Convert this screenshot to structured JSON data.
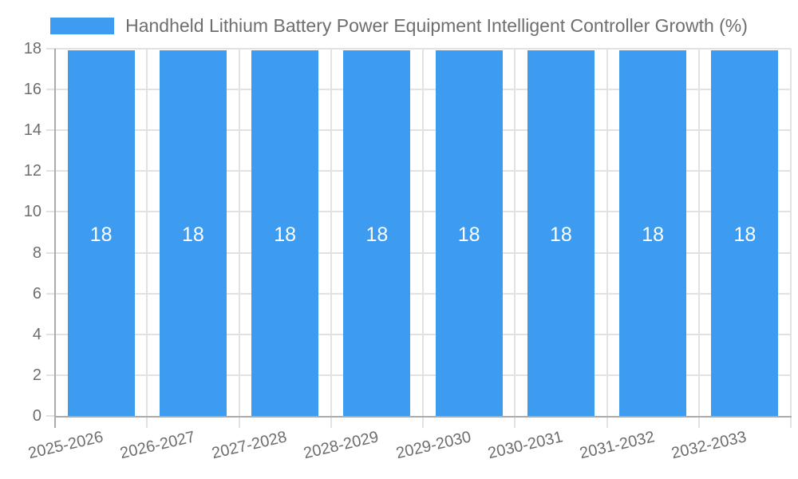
{
  "chart_data": {
    "type": "bar",
    "legend": "Handheld Lithium Battery Power Equipment Intelligent Controller Growth (%)",
    "legend_position": "top",
    "categories": [
      "2025-2026",
      "2026-2027",
      "2027-2028",
      "2028-2029",
      "2029-2030",
      "2030-2031",
      "2031-2032",
      "2032-2033"
    ],
    "series": [
      {
        "name": "Handheld Lithium Battery Power Equipment Intelligent Controller Growth (%)",
        "values": [
          18,
          18,
          18,
          18,
          18,
          18,
          18,
          18
        ]
      }
    ],
    "bar_value_labels": [
      "18",
      "18",
      "18",
      "18",
      "18",
      "18",
      "18",
      "18"
    ],
    "ylim": [
      0,
      18
    ],
    "ytick_step": 2,
    "ytick_labels": [
      "0",
      "2",
      "4",
      "6",
      "8",
      "10",
      "12",
      "14",
      "16",
      "18"
    ],
    "grid": true,
    "xlabel": "",
    "ylabel": "",
    "colors": {
      "bar": "#3d9cf0",
      "bar_label_text": "#ffffff",
      "axis_text": "#6e6e6e",
      "grid_line": "#e2e2e2",
      "axis_line": "#ababab"
    }
  }
}
